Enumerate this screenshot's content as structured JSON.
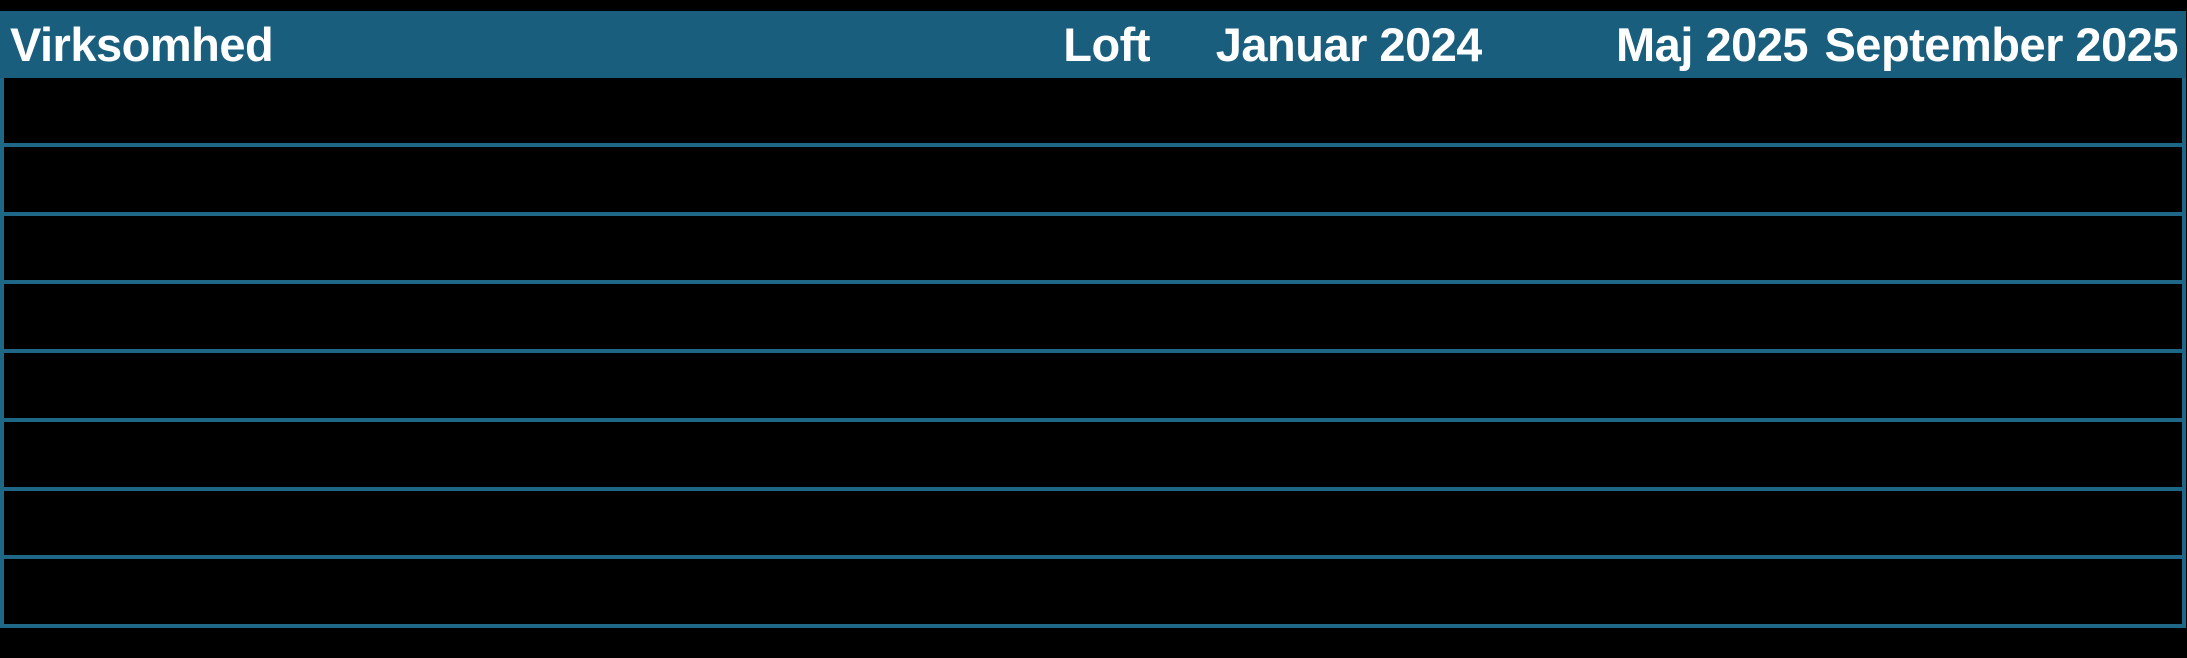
{
  "table": {
    "columns": [
      {
        "label": "Virksomhed",
        "align": "left"
      },
      {
        "label": "Loft",
        "align": "right"
      },
      {
        "label": "Januar 2024",
        "align": "right"
      },
      {
        "label": "Maj 2025",
        "align": "right"
      },
      {
        "label": "September 2025",
        "align": "right"
      }
    ],
    "rows": [
      "",
      "",
      "",
      "",
      "",
      "",
      "",
      ""
    ]
  },
  "colors": {
    "header_background": "#1a5e7e",
    "grid_line": "#1e6787",
    "header_text": "#ffffff",
    "page_background": "#000000"
  }
}
